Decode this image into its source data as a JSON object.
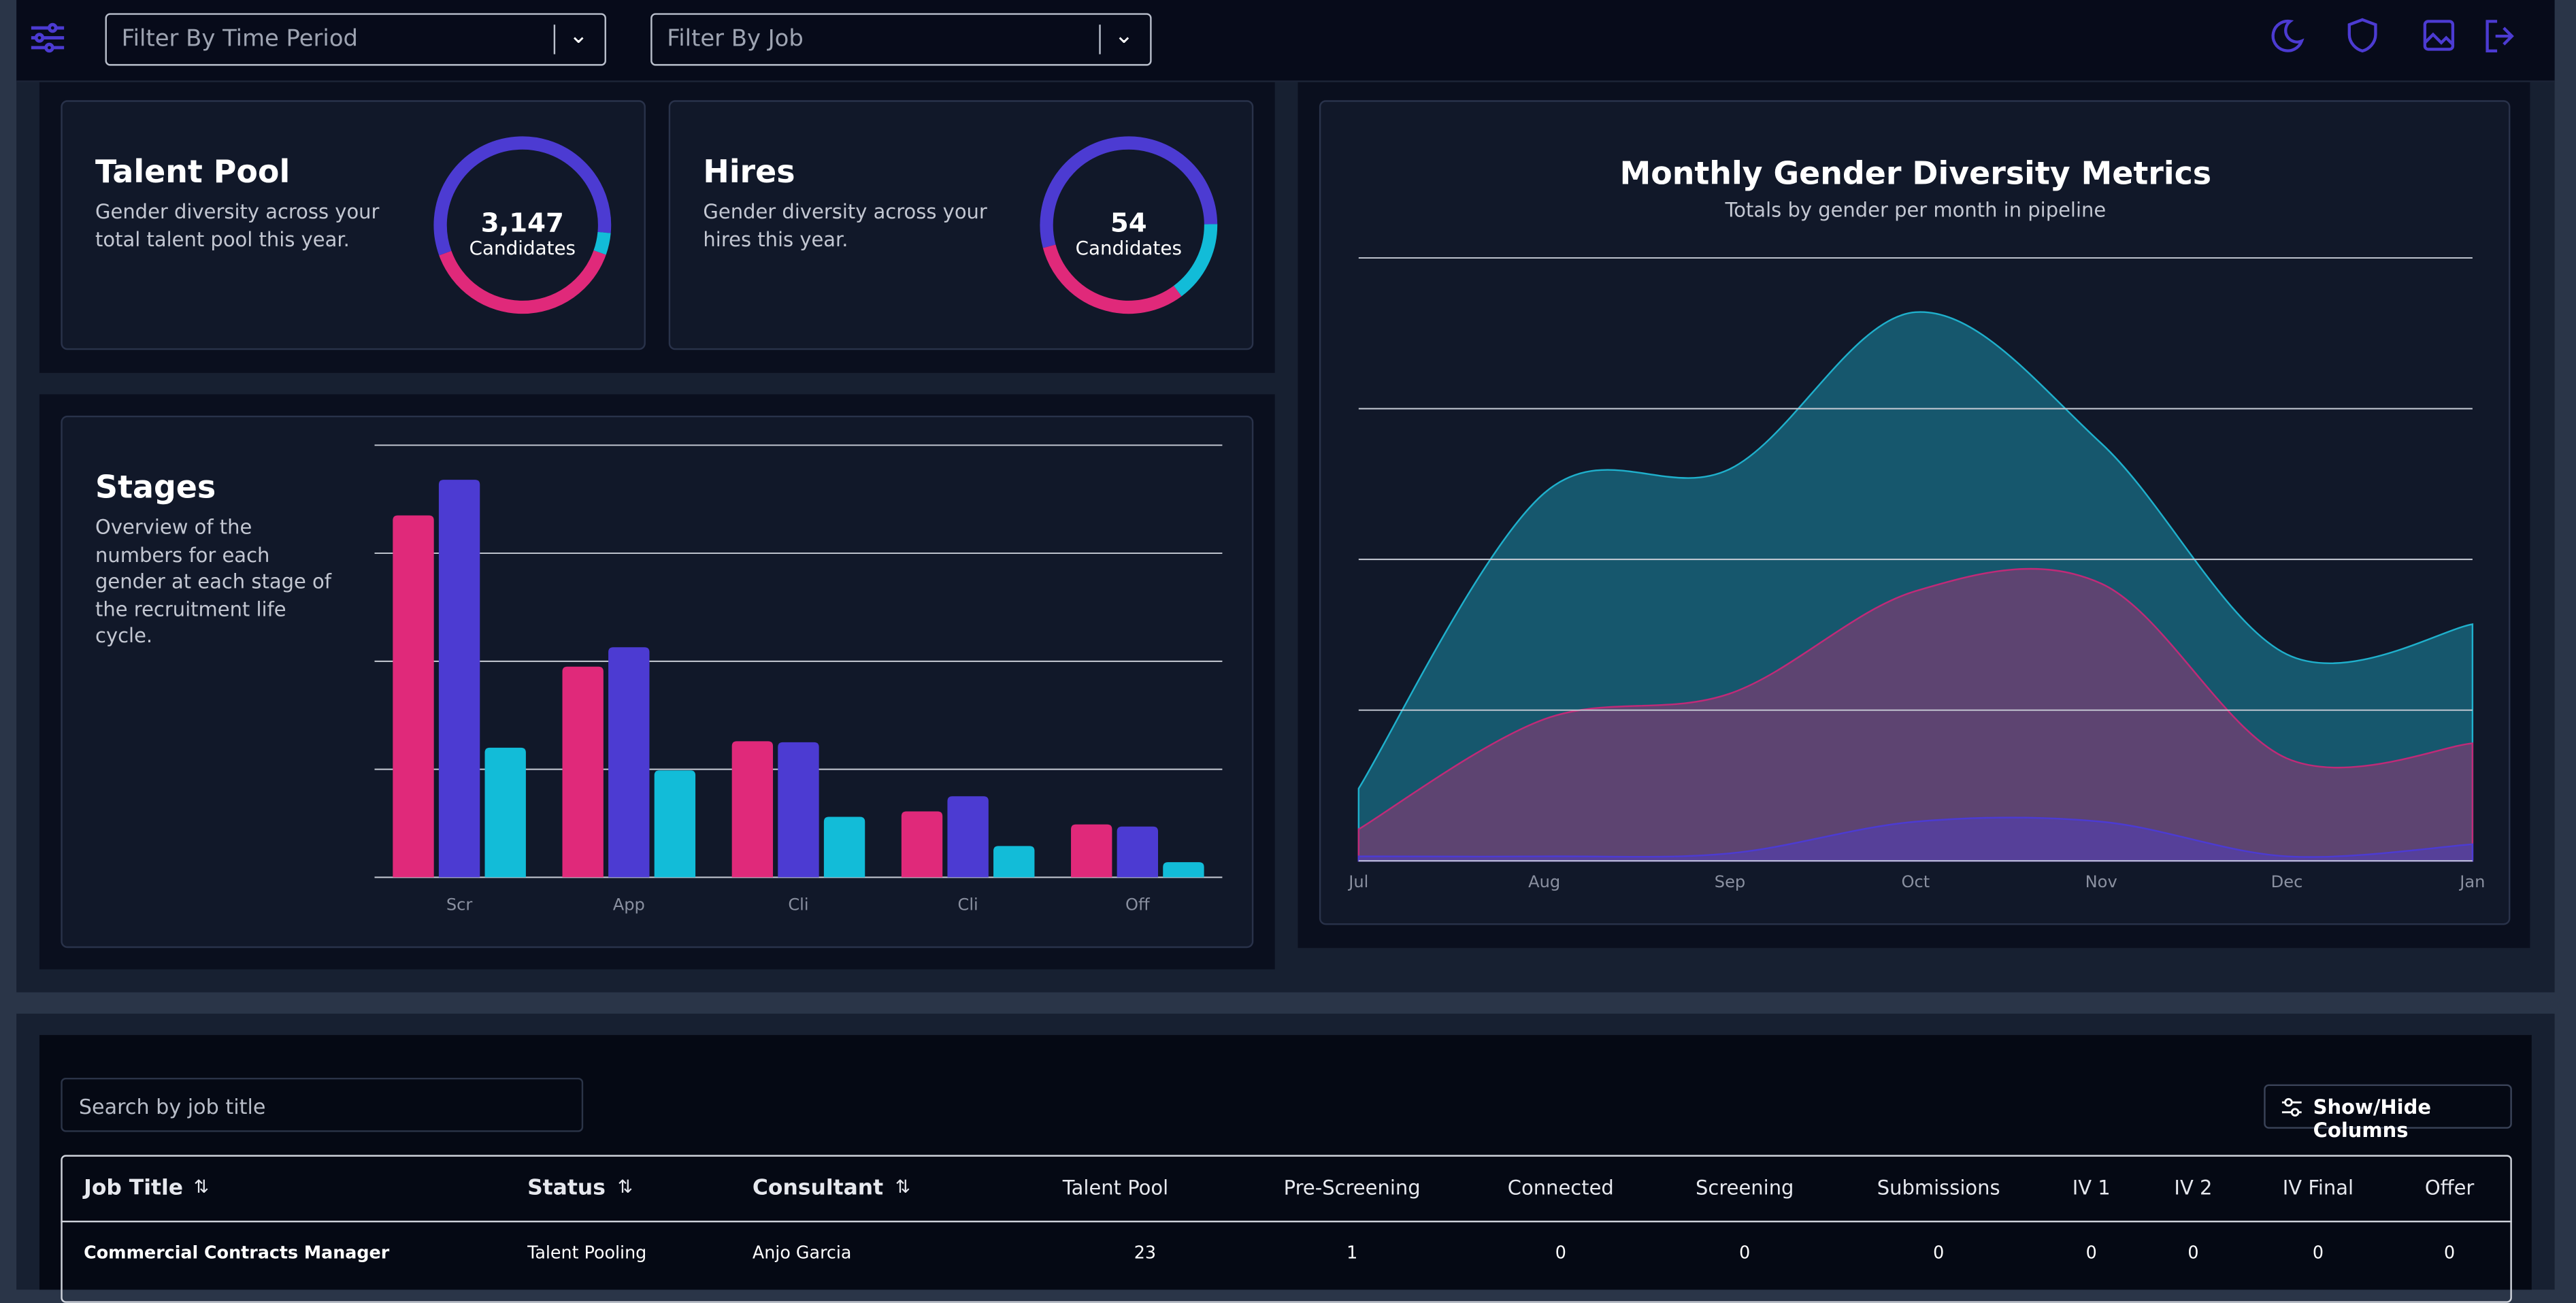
{
  "toolbar": {
    "filters": [
      "Filter By Time Period",
      "Filter By Job"
    ]
  },
  "talent_pool": {
    "type": "doughnut",
    "title": "Talent Pool",
    "description": "Gender diversity across your total talent pool this year.",
    "total": "3,147",
    "unit": "Candidates",
    "values": [
      57,
      4,
      39
    ],
    "colors": [
      "#4c3bd2",
      "#12bcd8",
      "#e0297a"
    ]
  },
  "hires": {
    "type": "doughnut",
    "title": "Hires",
    "description": "Gender diversity across your hires this year.",
    "total": "54",
    "unit": "Candidates",
    "values": [
      54,
      15,
      31
    ],
    "colors": [
      "#4c3bd2",
      "#12bcd8",
      "#e0297a"
    ]
  },
  "stages_chart": {
    "type": "bar",
    "title": "Stages",
    "description": "Overview of the numbers for each gender at each stage of the recruitment life cycle.",
    "categories": [
      "Scr",
      "App",
      "Cli",
      "Cli",
      "Off"
    ],
    "series": [
      {
        "color": "#e0297a",
        "values": [
          335,
          195,
          126,
          61,
          49
        ]
      },
      {
        "color": "#4c3bd2",
        "values": [
          368,
          213,
          125,
          75,
          47
        ]
      },
      {
        "color": "#12bcd8",
        "values": [
          120,
          99,
          56,
          29,
          14
        ]
      }
    ],
    "ylim": [
      0,
      400
    ],
    "yticks": [
      0,
      100,
      200,
      300,
      400
    ],
    "grid": true
  },
  "gender_chart": {
    "type": "area",
    "title": "Monthly Gender Diversity Metrics",
    "subtitle": "Totals by gender per month in pipeline",
    "categories": [
      "Jul",
      "Aug",
      "Sep",
      "Oct",
      "Nov",
      "Dec",
      "Jan"
    ],
    "series": [
      {
        "color": "#1fb0cc",
        "values": [
          48,
          244,
          260,
          364,
          277,
          137,
          157
        ]
      },
      {
        "color": "#c02a78",
        "values": [
          21,
          94,
          111,
          179,
          184,
          68,
          78
        ]
      },
      {
        "color": "#4c3bd2",
        "values": [
          3,
          3,
          5,
          26,
          26,
          3,
          11
        ]
      }
    ],
    "ylim": [
      0,
      400
    ],
    "yticks": [
      0,
      100,
      200,
      300,
      400
    ],
    "grid": true
  },
  "table": {
    "search_placeholder": "Search by job title",
    "columns_button": "Show/Hide Columns",
    "columns": [
      "Job Title",
      "Status",
      "Consultant",
      "Talent Pool",
      "Pre-Screening",
      "Connected",
      "Screening",
      "Submissions",
      "IV 1",
      "IV 2",
      "IV Final",
      "Offer"
    ],
    "rows": [
      [
        "Commercial Contracts Manager",
        "Talent Pooling",
        "Anjo Garcia",
        23,
        1,
        0,
        0,
        0,
        0,
        0,
        0,
        0
      ]
    ]
  }
}
